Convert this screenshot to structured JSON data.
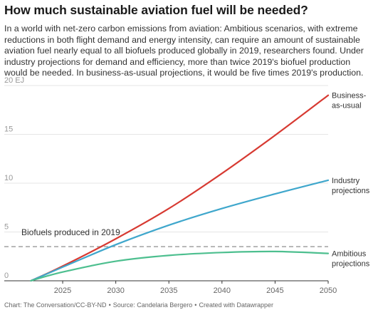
{
  "header": {
    "title": "How much sustainable aviation fuel will be needed?",
    "description": "In a world with net-zero carbon emissions from aviation: Ambitious scenarios, with extreme reductions in both flight demand and energy intensity, can require an amount of sustainable aviation fuel nearly equal to all biofuels produced globally in 2019, researchers found. Under industry projections for demand and efficiency, more than twice 2019's biofuel production would be needed. In business-as-usual projections, it would be five times 2019's production."
  },
  "footer": {
    "chart_source": "Chart: The Conversation/CC-BY-ND",
    "data_source": "Source: Candelaria Bergero",
    "created_with": "Created with Datawrapper"
  },
  "chart_data": {
    "type": "line",
    "xlim": [
      2019.5,
      2050
    ],
    "ylim": [
      0,
      20
    ],
    "y_ticks": [
      0,
      5,
      10,
      15,
      20
    ],
    "y_tick_labels": [
      "0",
      "5",
      "10",
      "15",
      "20 EJ"
    ],
    "x_ticks": [
      2025,
      2030,
      2035,
      2040,
      2045,
      2050
    ],
    "grid": true,
    "legend": "direct labels at line ends (right)",
    "reference_line": {
      "label": "Biofuels produced in 2019",
      "value": 3.5,
      "color": "#999999",
      "style": "dashed"
    },
    "series": [
      {
        "name": "Business-as-usual",
        "color": "#d73a32",
        "x": [
          2022,
          2025,
          2030,
          2035,
          2040,
          2045,
          2050
        ],
        "values": [
          0,
          1.5,
          4.3,
          7.4,
          11.0,
          14.9,
          19.0
        ]
      },
      {
        "name": "Industry projections",
        "color": "#3fa7cc",
        "x": [
          2022,
          2025,
          2030,
          2035,
          2040,
          2045,
          2050
        ],
        "values": [
          0,
          1.4,
          3.7,
          5.7,
          7.4,
          8.9,
          10.3
        ]
      },
      {
        "name": "Ambitious projections",
        "color": "#4dbf8f",
        "x": [
          2022,
          2025,
          2030,
          2035,
          2040,
          2045,
          2050
        ],
        "values": [
          0,
          0.9,
          2.0,
          2.6,
          2.9,
          3.0,
          2.8
        ]
      }
    ]
  }
}
